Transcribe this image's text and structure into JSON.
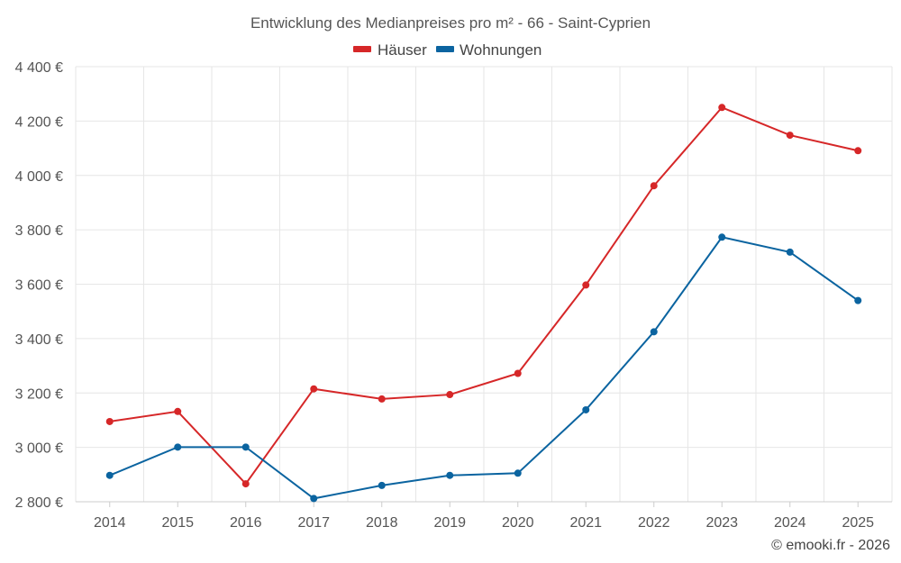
{
  "chart_data": {
    "type": "line",
    "title": "Entwicklung des Medianpreises pro m² - 66 - Saint-Cyprien",
    "categories": [
      "2014",
      "2015",
      "2016",
      "2017",
      "2018",
      "2019",
      "2020",
      "2021",
      "2022",
      "2023",
      "2024",
      "2025"
    ],
    "series": [
      {
        "name": "Häuser",
        "color": "#d62728",
        "values": [
          3095,
          3132,
          2866,
          3215,
          3178,
          3194,
          3272,
          3597,
          3962,
          4250,
          4148,
          4091
        ]
      },
      {
        "name": "Wohnungen",
        "color": "#0b64a0",
        "values": [
          2897,
          3001,
          3001,
          2812,
          2860,
          2897,
          2905,
          3138,
          3425,
          3773,
          3718,
          3540
        ]
      }
    ],
    "ylim": [
      2800,
      4400
    ],
    "yticks": [
      2800,
      3000,
      3200,
      3400,
      3600,
      3800,
      4000,
      4200,
      4400
    ],
    "ytick_labels": [
      "2 800 €",
      "3 000 €",
      "3 200 €",
      "3 400 €",
      "3 600 €",
      "3 800 €",
      "4 000 €",
      "4 200 €",
      "4 400 €"
    ],
    "xlabel": "",
    "ylabel": "",
    "grid": true,
    "legend_position": "top-center"
  },
  "credit": "© emooki.fr - 2026"
}
